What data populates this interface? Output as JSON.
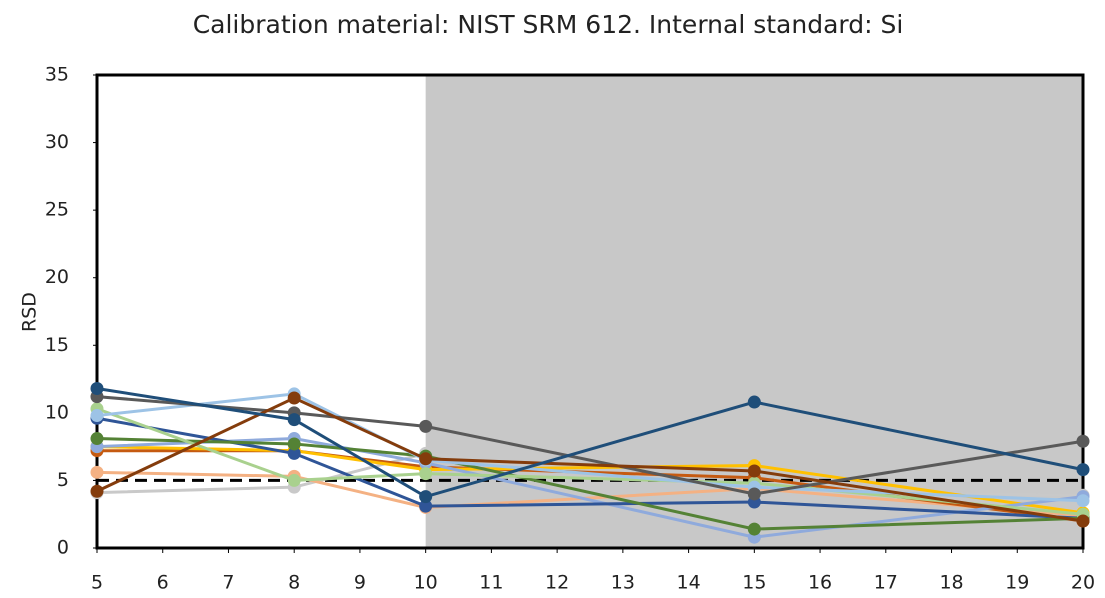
{
  "chart_data": {
    "type": "line",
    "title": "Calibration material: NIST SRM 612. Internal standard: Si",
    "y_label": "RSD",
    "x": [
      5,
      8,
      10,
      15,
      20
    ],
    "xlim": [
      5,
      20
    ],
    "xticks": [
      5,
      6,
      7,
      8,
      9,
      10,
      11,
      12,
      13,
      14,
      15,
      16,
      17,
      18,
      19,
      20
    ],
    "ylim": [
      0,
      35
    ],
    "yticks": [
      0,
      5,
      10,
      15,
      20,
      25,
      30,
      35
    ],
    "reference_line": 5,
    "shaded_region": [
      10,
      20
    ],
    "grid": false,
    "series": [
      {
        "color": "#c9c9c9",
        "values": [
          4.1,
          4.5,
          7.0,
          4.2,
          3.9
        ]
      },
      {
        "color": "#f4b183",
        "values": [
          5.6,
          5.3,
          3.0,
          4.4,
          2.4
        ]
      },
      {
        "color": "#c55a11",
        "values": [
          7.2,
          7.2,
          6.0,
          5.2,
          2.0
        ]
      },
      {
        "color": "#ffc000",
        "values": [
          7.5,
          7.2,
          5.8,
          6.1,
          2.6
        ]
      },
      {
        "color": "#8faadc",
        "values": [
          7.5,
          8.1,
          6.3,
          0.8,
          3.8
        ]
      },
      {
        "color": "#2f5597",
        "values": [
          9.6,
          7.0,
          3.1,
          3.4,
          2.2
        ]
      },
      {
        "color": "#548235",
        "values": [
          8.1,
          7.7,
          6.8,
          1.4,
          2.2
        ]
      },
      {
        "color": "#a9d18e",
        "values": [
          10.3,
          5.0,
          5.5,
          4.8,
          2.5
        ]
      },
      {
        "color": "#9dc3e6",
        "values": [
          9.8,
          11.4,
          6.5,
          4.5,
          3.5
        ]
      },
      {
        "color": "#595959",
        "values": [
          11.2,
          10.0,
          9.0,
          4.0,
          7.9
        ]
      },
      {
        "color": "#843c0c",
        "values": [
          4.2,
          11.1,
          6.6,
          5.7,
          2.0
        ]
      },
      {
        "color": "#1f4e79",
        "values": [
          11.8,
          9.5,
          3.8,
          10.8,
          5.8
        ]
      }
    ]
  }
}
